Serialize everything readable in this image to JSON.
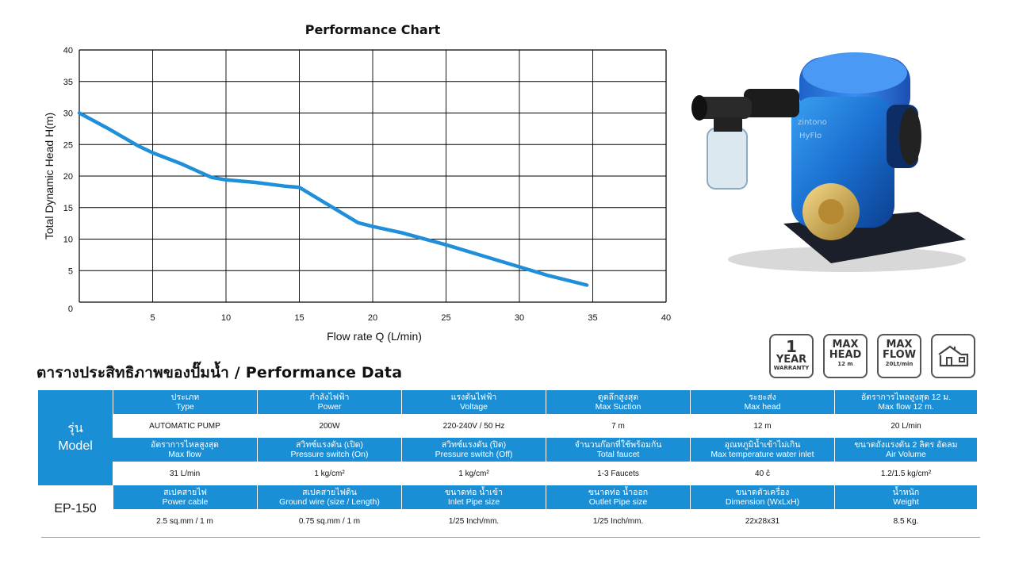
{
  "chart_data": {
    "type": "line",
    "title": "Performance Chart",
    "xlabel": "Flow rate Q (L/min)",
    "ylabel": "Total Dynamic Head H(m)",
    "xlim": [
      0,
      40
    ],
    "ylim": [
      0,
      40
    ],
    "x_ticks": [
      "5",
      "10",
      "15",
      "20",
      "25",
      "30",
      "35",
      "40"
    ],
    "y_ticks": [
      "0",
      "5",
      "10",
      "15",
      "20",
      "25",
      "30",
      "35",
      "40"
    ],
    "grid": true,
    "line_color": "#1e8fd8",
    "series": [
      {
        "x": [
          0,
          2,
          4,
          5,
          7,
          9,
          10,
          12,
          14,
          15,
          17,
          19,
          20,
          22,
          25,
          28,
          30,
          32,
          34.6
        ],
        "y": [
          30,
          27.5,
          24.8,
          23.7,
          21.9,
          19.8,
          19.4,
          19.0,
          18.4,
          18.2,
          15.4,
          12.6,
          12.0,
          11.0,
          9.1,
          7.0,
          5.6,
          4.2,
          2.7
        ]
      }
    ]
  },
  "badges": {
    "warranty": {
      "big": "1",
      "mid": "YEAR",
      "small": "WARRANTY"
    },
    "max_head": {
      "l1": "MAX",
      "l2": "HEAD",
      "l3": "12 m"
    },
    "max_flow": {
      "l1": "MAX",
      "l2": "FLOW",
      "l3": "20Lt/min"
    },
    "house_icon": "house-icon"
  },
  "table": {
    "title": "ตารางประสิทธิภาพของปั๊มน้ำ / Performance Data",
    "model_label_th": "รุ่น",
    "model_label_en": "Model",
    "model_value": "EP-150",
    "header_color": "#1a8fd6",
    "row1_headers": [
      {
        "th": "ประเภท",
        "en": "Type"
      },
      {
        "th": "กำลังไฟฟ้า",
        "en": "Power"
      },
      {
        "th": "แรงดันไฟฟ้า",
        "en": "Voltage"
      },
      {
        "th": "ดูดลึกสูงสุด",
        "en": "Max Suction"
      },
      {
        "th": "ระยะส่ง",
        "en": "Max head"
      },
      {
        "th": "อัตราการไหลสูงสุด 12 ม.",
        "en": "Max flow 12 m."
      }
    ],
    "row1_values": [
      "AUTOMATIC PUMP",
      "200W",
      "220-240V / 50 Hz",
      "7 m",
      "12 m",
      "20 L/min"
    ],
    "row2_headers": [
      {
        "th": "อัตราการไหลสูงสุด",
        "en": "Max flow"
      },
      {
        "th": "สวิทซ์แรงดัน (เปิด)",
        "en": "Pressure switch (On)"
      },
      {
        "th": "สวิทซ์แรงดัน (ปิด)",
        "en": "Pressure switch (Off)"
      },
      {
        "th": "จำนวนก๊อกที่ใช้พร้อมกัน",
        "en": "Total faucet"
      },
      {
        "th": "อุณหภูมิน้ำเข้าไม่เกิน",
        "en": "Max temperature water inlet"
      },
      {
        "th": "ขนาดถังแรงดัน 2 ลิตร อัดลม",
        "en": "Air Volume"
      }
    ],
    "row2_values": [
      "31 L/min",
      "1 kg/cm²",
      "1 kg/cm²",
      "1-3 Faucets",
      "40 c̊",
      "1.2/1.5 kg/cm²"
    ],
    "row3_headers": [
      {
        "th": "สเปคสายไฟ",
        "en": "Power cable"
      },
      {
        "th": "สเปคสายไฟดิน",
        "en": "Ground wire (size / Length)"
      },
      {
        "th": "ขนาดท่อ น้ำเข้า",
        "en": "Inlet Pipe size"
      },
      {
        "th": "ขนาดท่อ น้ำออก",
        "en": "Outlet Pipe size"
      },
      {
        "th": "ขนาดตัวเครื่อง",
        "en": "Dimension (WxLxH)"
      },
      {
        "th": "น้ำหนัก",
        "en": "Weight"
      }
    ],
    "row3_values": [
      "2.5 sq.mm / 1 m",
      "0.75 sq.mm / 1 m",
      "1/25 Inch/mm.",
      "1/25 Inch/mm.",
      "22x28x31",
      "8.5 Kg."
    ]
  }
}
